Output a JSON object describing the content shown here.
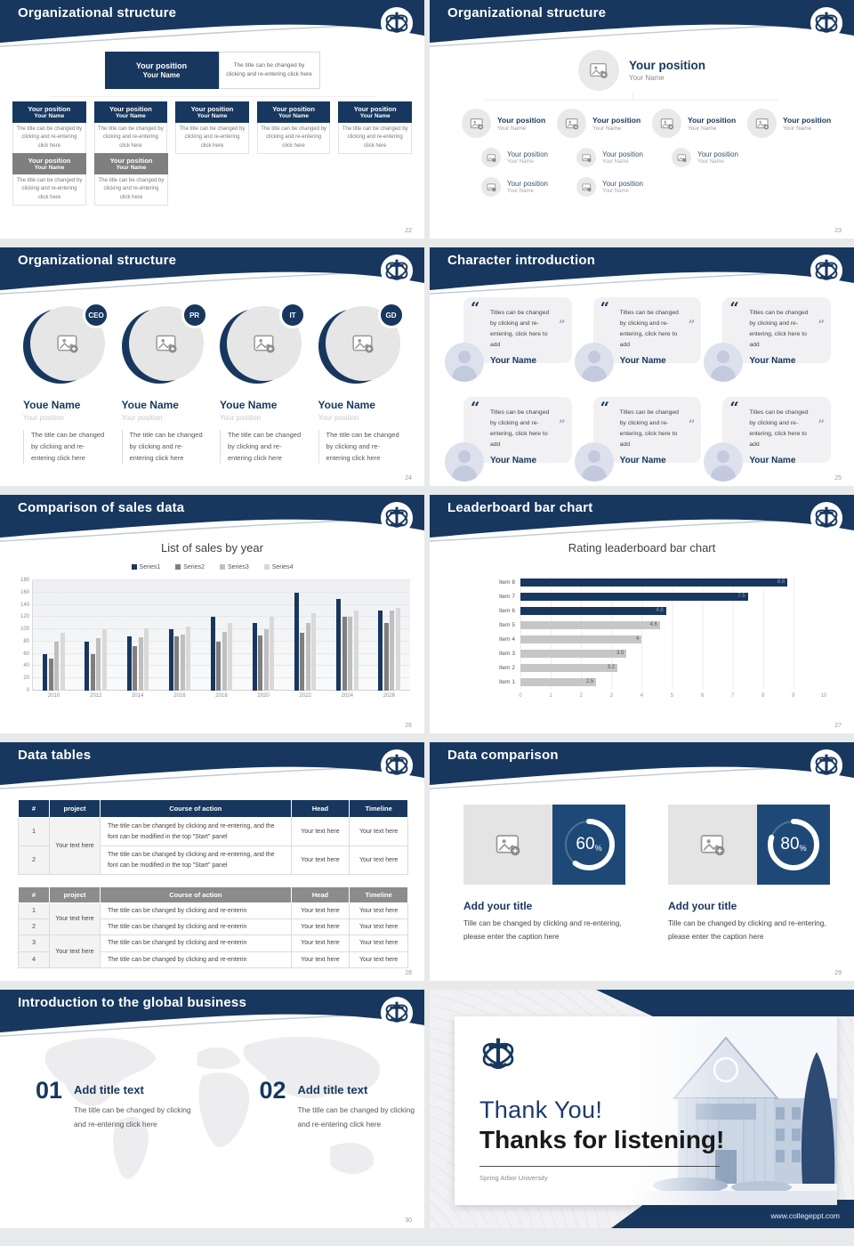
{
  "s1": {
    "title": "Organizational structure",
    "page": "22",
    "position": "Your position",
    "name": "Your Name",
    "note": "The title can be changed by clicking and re-entering click here"
  },
  "s2": {
    "title": "Organizational structure",
    "page": "23",
    "position": "Your position",
    "name": "Your Name"
  },
  "s3": {
    "title": "Organizational structure",
    "page": "24",
    "badges": [
      "CEO",
      "PR",
      "IT",
      "GD"
    ],
    "name": "Youe Name",
    "position": "Your position",
    "note": "The title can be changed by clicking and re-entering click here"
  },
  "s4": {
    "title": "Character introduction",
    "page": "25",
    "open_quote": "“",
    "close_quote": "”",
    "quote": "Titles can be changed by clicking and re-entering, click here to add",
    "name": "Your Name"
  },
  "s5": {
    "title": "Comparison of sales data",
    "page": "26"
  },
  "s6": {
    "title": "Leaderboard bar chart",
    "page": "27"
  },
  "s7": {
    "title": "Data tables",
    "page": "28",
    "headers": [
      "#",
      "project",
      "Course of action",
      "Head",
      "Timeline"
    ],
    "nums": [
      "1",
      "2",
      "3",
      "4"
    ],
    "project": "Your text here",
    "course_long": "The title can be changed by clicking and re-entering, and the font can be modified in the top \"Start\" panel",
    "course_short": "The title can be changed by clicking and re-enterin",
    "cell": "Your text here"
  },
  "s8": {
    "title": "Data comparison",
    "page": "29",
    "panels": [
      {
        "percent": 60
      },
      {
        "percent": 80
      }
    ],
    "percent_sign": "%",
    "heading": "Add your title",
    "caption": "Tille can be changed by clicking and re-entering, please enter the caption here"
  },
  "s9": {
    "title": "Introduction to the global business",
    "page": "30",
    "items": [
      {
        "num": "01",
        "heading": "Add title text",
        "text": "The title can be changed by clicking and re-entering click here"
      },
      {
        "num": "02",
        "heading": "Add title text",
        "text": "The title can be changed by clicking and re-entering click here"
      }
    ]
  },
  "s10": {
    "line1": "Thank You!",
    "line2": "Thanks for listening!",
    "org": "Spring Arbor University",
    "url": "www.collegeppt.com"
  },
  "chart_data": [
    {
      "type": "bar",
      "title": "List of sales by year",
      "categories": [
        "2010",
        "2012",
        "2014",
        "2016",
        "2018",
        "2020",
        "2022",
        "2024",
        "2026"
      ],
      "series": [
        {
          "name": "Series1",
          "values": [
            60,
            80,
            88,
            100,
            120,
            110,
            160,
            150,
            130
          ]
        },
        {
          "name": "Series2",
          "values": [
            53,
            60,
            73,
            88,
            80,
            90,
            95,
            120,
            110
          ]
        },
        {
          "name": "Series3",
          "values": [
            80,
            86,
            87,
            92,
            96,
            100,
            110,
            120,
            130
          ]
        },
        {
          "name": "Series4",
          "values": [
            94,
            100,
            102,
            105,
            110,
            120,
            126,
            130,
            135
          ]
        }
      ],
      "colors": [
        "#17375e",
        "#7f7f7f",
        "#bfbfbf",
        "#d9d9d9"
      ],
      "xlabel": "",
      "ylabel": "",
      "ylim": [
        0,
        180
      ],
      "yticks": [
        0,
        20,
        40,
        60,
        80,
        100,
        120,
        140,
        160,
        180
      ],
      "grid": true,
      "legend_position": "top"
    },
    {
      "type": "bar",
      "orientation": "horizontal",
      "title": "Rating leaderboard bar chart",
      "categories": [
        "Item 1",
        "Item 2",
        "Item 3",
        "Item 4",
        "Item 5",
        "Item 6",
        "Item 7",
        "Item 8"
      ],
      "values": [
        2.5,
        3.2,
        3.5,
        4,
        4.6,
        4.8,
        7.5,
        8.8
      ],
      "colors": [
        "#c6c6c6",
        "#c6c6c6",
        "#c6c6c6",
        "#c6c6c6",
        "#c6c6c6",
        "#17375e",
        "#17375e",
        "#17375e"
      ],
      "xlim": [
        0,
        10
      ],
      "xticks": [
        0,
        1,
        2,
        3,
        4,
        5,
        6,
        7,
        8,
        9,
        10
      ],
      "grid": true,
      "data_labels": true
    }
  ]
}
